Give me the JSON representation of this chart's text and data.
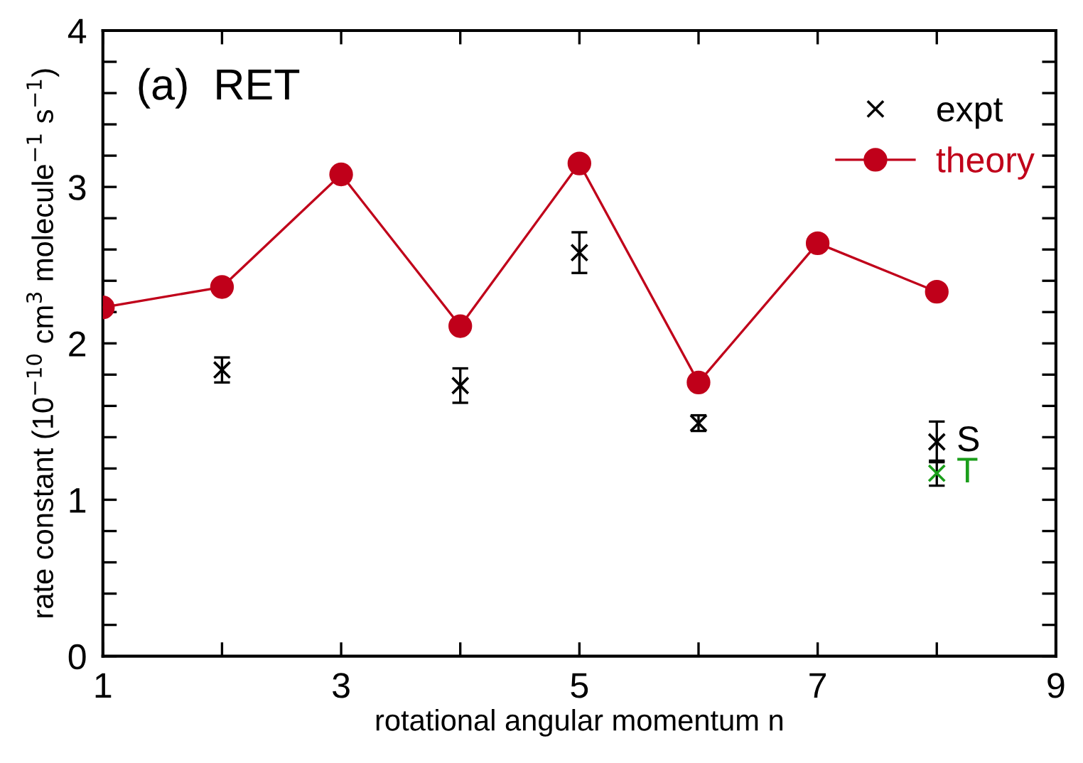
{
  "chart_data": {
    "type": "line",
    "title": "(a)  RET",
    "xlabel": "rotational angular momentum n",
    "ylabel": "rate constant (10$^{−10}$ cm$^{3}$ molecule$^{−1}$ s$^{−1}$)",
    "xlim": [
      1,
      9
    ],
    "ylim": [
      0,
      4
    ],
    "xticks": [
      1,
      {
        "value": 2,
        "label": null
      },
      3,
      {
        "value": 4,
        "label": null
      },
      5,
      {
        "value": 6,
        "label": null
      },
      7,
      {
        "value": 8,
        "label": null
      },
      9
    ],
    "yticks": [
      0,
      {
        "value": 0.2,
        "label": null
      },
      {
        "value": 0.4,
        "label": null
      },
      {
        "value": 0.6,
        "label": null
      },
      {
        "value": 0.8,
        "label": null
      },
      1,
      {
        "value": 1.2,
        "label": null
      },
      {
        "value": 1.4,
        "label": null
      },
      {
        "value": 1.6,
        "label": null
      },
      {
        "value": 1.8,
        "label": null
      },
      2,
      {
        "value": 2.2,
        "label": null
      },
      {
        "value": 2.4,
        "label": null
      },
      {
        "value": 2.6,
        "label": null
      },
      {
        "value": 2.8,
        "label": null
      },
      3,
      {
        "value": 3.2,
        "label": null
      },
      {
        "value": 3.4,
        "label": null
      },
      {
        "value": 3.6,
        "label": null
      },
      {
        "value": 3.8,
        "label": null
      },
      4
    ],
    "legend": "top right",
    "grid": false,
    "series": [
      {
        "name": "expt",
        "type": "scatter",
        "marker": "cross",
        "color": "#000000",
        "x": [
          2,
          4,
          5,
          6,
          8
        ],
        "values": [
          1.83,
          1.73,
          2.58,
          1.49,
          1.37
        ],
        "errors": [
          0.08,
          0.11,
          0.13,
          0.05,
          0.13
        ]
      },
      {
        "type": "scatter",
        "marker": "cross",
        "color": "#1a9e1a",
        "x": [
          8
        ],
        "values": [
          1.17
        ],
        "errors": [
          0.08
        ]
      },
      {
        "name": "theory",
        "marker": "circle",
        "line_style": "solid",
        "color": "#c0001a",
        "x": [
          1,
          2,
          3,
          4,
          5,
          6,
          7,
          8
        ],
        "values": [
          2.23,
          2.36,
          3.08,
          2.11,
          3.15,
          1.75,
          2.64,
          2.33
        ]
      }
    ],
    "annotations": [
      {
        "text": "S",
        "x": 8,
        "y": 1.37
      },
      {
        "text": "T",
        "x": 8,
        "y": 1.17
      }
    ]
  }
}
